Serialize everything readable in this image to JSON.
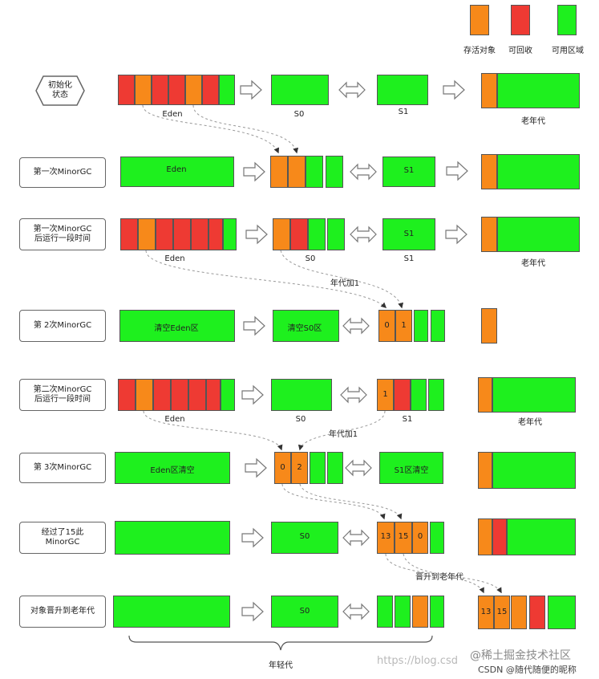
{
  "legend": {
    "survivor": "存活对象",
    "recyclable": "可回收",
    "available": "可用区域",
    "colors": {
      "survivor": "#f7891a",
      "recyclable": "#ee3a33",
      "available": "#1ef01e"
    }
  },
  "steps": {
    "s1": "初始化\n状态",
    "s2": "第一次MinorGC",
    "s3": "第一次MinorGC\n后运行一段时间",
    "s4": "第 2次MinorGC",
    "s5": "第二次MinorGC\n后运行一段时间",
    "s6": "第 3次MinorGC",
    "s7": "经过了15此\nMinorGC",
    "s8": "对象晋升到老年代"
  },
  "labels": {
    "eden": "Eden",
    "s0": "S0",
    "s1": "S1",
    "old": "老年代",
    "age_plus_one": "年代加1",
    "clear_eden": "清空Eden区",
    "clear_s0": "清空S0区",
    "eden_cleared": "Eden区清空",
    "s1_cleared": "S1区清空",
    "promote": "晋升到老年代",
    "young_gen": "年轻代"
  },
  "ages": {
    "a0": "0",
    "a1": "1",
    "a2": "2",
    "a13": "13",
    "a15": "15"
  },
  "watermark": {
    "juejin": "@稀土掘金技术社区",
    "csdn": "CSDN @随代随便的昵称",
    "blog": "https://blog.csd"
  }
}
